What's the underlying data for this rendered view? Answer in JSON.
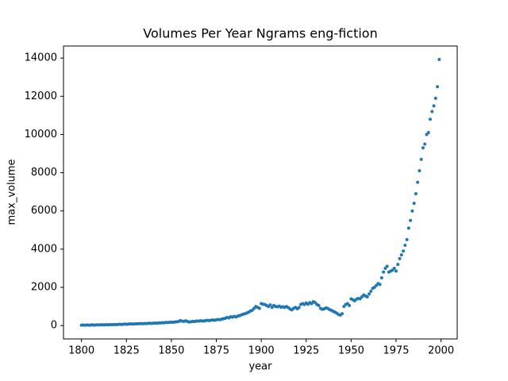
{
  "chart_data": {
    "type": "scatter",
    "title": "Volumes Per Year Ngrams eng-fiction",
    "x_label": "year",
    "y_label": "max_volume",
    "color": "#1f77b4",
    "xlim": [
      1790,
      2009
    ],
    "ylim": [
      -700,
      14630
    ],
    "xticks": [
      1800,
      1825,
      1850,
      1875,
      1900,
      1925,
      1950,
      1975,
      2000
    ],
    "yticks": [
      0,
      2000,
      4000,
      6000,
      8000,
      10000,
      12000,
      14000
    ],
    "x": [
      1800,
      1801,
      1802,
      1803,
      1804,
      1805,
      1806,
      1807,
      1808,
      1809,
      1810,
      1811,
      1812,
      1813,
      1814,
      1815,
      1816,
      1817,
      1818,
      1819,
      1820,
      1821,
      1822,
      1823,
      1824,
      1825,
      1826,
      1827,
      1828,
      1829,
      1830,
      1831,
      1832,
      1833,
      1834,
      1835,
      1836,
      1837,
      1838,
      1839,
      1840,
      1841,
      1842,
      1843,
      1844,
      1845,
      1846,
      1847,
      1848,
      1849,
      1850,
      1851,
      1852,
      1853,
      1854,
      1855,
      1856,
      1857,
      1858,
      1859,
      1860,
      1861,
      1862,
      1863,
      1864,
      1865,
      1866,
      1867,
      1868,
      1869,
      1870,
      1871,
      1872,
      1873,
      1874,
      1875,
      1876,
      1877,
      1878,
      1879,
      1880,
      1881,
      1882,
      1883,
      1884,
      1885,
      1886,
      1887,
      1888,
      1889,
      1890,
      1891,
      1892,
      1893,
      1894,
      1895,
      1896,
      1897,
      1898,
      1899,
      1900,
      1901,
      1902,
      1903,
      1904,
      1905,
      1906,
      1907,
      1908,
      1909,
      1910,
      1911,
      1912,
      1913,
      1914,
      1915,
      1916,
      1917,
      1918,
      1919,
      1920,
      1921,
      1922,
      1923,
      1924,
      1925,
      1926,
      1927,
      1928,
      1929,
      1930,
      1931,
      1932,
      1933,
      1934,
      1935,
      1936,
      1937,
      1938,
      1939,
      1940,
      1941,
      1942,
      1943,
      1944,
      1945,
      1946,
      1947,
      1948,
      1949,
      1950,
      1951,
      1952,
      1953,
      1954,
      1955,
      1956,
      1957,
      1958,
      1959,
      1960,
      1961,
      1962,
      1963,
      1964,
      1965,
      1966,
      1967,
      1968,
      1969,
      1970,
      1971,
      1972,
      1973,
      1974,
      1975,
      1976,
      1977,
      1978,
      1979,
      1980,
      1981,
      1982,
      1983,
      1984,
      1985,
      1986,
      1987,
      1988,
      1989,
      1990,
      1991,
      1992,
      1993,
      1994,
      1995,
      1996,
      1997,
      1998,
      1999
    ],
    "values": [
      20,
      25,
      15,
      30,
      20,
      25,
      35,
      20,
      30,
      40,
      30,
      45,
      35,
      40,
      50,
      40,
      55,
      45,
      60,
      50,
      55,
      70,
      60,
      65,
      80,
      70,
      75,
      90,
      85,
      80,
      95,
      90,
      100,
      105,
      95,
      110,
      100,
      115,
      120,
      110,
      125,
      130,
      120,
      140,
      135,
      150,
      145,
      160,
      155,
      170,
      180,
      175,
      190,
      200,
      210,
      260,
      230,
      220,
      250,
      210,
      190,
      200,
      220,
      210,
      240,
      230,
      250,
      245,
      235,
      260,
      270,
      260,
      280,
      290,
      275,
      300,
      320,
      310,
      340,
      360,
      380,
      420,
      400,
      460,
      440,
      480,
      450,
      500,
      520,
      560,
      600,
      620,
      660,
      700,
      760,
      800,
      900,
      1000,
      950,
      900,
      1150,
      1120,
      1100,
      1050,
      1000,
      1080,
      950,
      1050,
      1000,
      980,
      1020,
      960,
      990,
      950,
      1000,
      940,
      870,
      820,
      900,
      950,
      880,
      940,
      1100,
      1150,
      1100,
      1180,
      1120,
      1200,
      1150,
      1250,
      1200,
      1100,
      1050,
      900,
      850,
      880,
      920,
      900,
      830,
      800,
      750,
      700,
      650,
      580,
      550,
      620,
      1000,
      1100,
      1150,
      1050,
      1400,
      1350,
      1300,
      1380,
      1420,
      1400,
      1500,
      1600,
      1550,
      1500,
      1650,
      1800,
      1950,
      2000,
      2100,
      2200,
      2150,
      2500,
      2800,
      3000,
      3100,
      2800,
      2850,
      2900,
      3000,
      2850,
      3200,
      3500,
      3700,
      3900,
      4200,
      4500,
      5100,
      5500,
      6000,
      6400,
      6900,
      7500,
      8100,
      8700,
      9300,
      9500,
      10000,
      10100,
      10800,
      11200,
      11500,
      11900,
      12500,
      13930
    ]
  }
}
